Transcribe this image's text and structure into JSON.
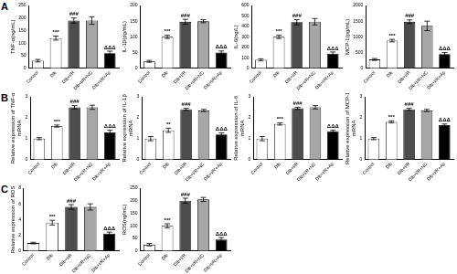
{
  "chart_data": [
    {
      "type": "bar",
      "panel": "A",
      "y_label": "TNF-α(ng/mL)",
      "categories": [
        "Control",
        "Dlb",
        "Dlb+I/R",
        "Dlb+I/R+NC",
        "Dlb+I/R+Ap"
      ],
      "values": [
        30,
        120,
        190,
        190,
        60
      ],
      "errors": [
        5,
        8,
        10,
        15,
        8
      ],
      "significance": [
        null,
        "***",
        "###",
        null,
        "ΔΔΔ"
      ],
      "colors": [
        "#ffffff",
        "#ffffff",
        "#4d4d4d",
        "#a6a6a6",
        "#000000"
      ],
      "ylim": [
        0,
        250
      ],
      "yticks": [
        0,
        50,
        100,
        150,
        200,
        250
      ],
      "grid": false
    },
    {
      "type": "bar",
      "panel": "A",
      "y_label": "IL-1β(pg/mL)",
      "categories": [
        "Control",
        "Dlb",
        "Dlb+I/R",
        "Dlb+I/R+NC",
        "Dlb+I/R+Ap"
      ],
      "values": [
        22,
        100,
        148,
        150,
        50
      ],
      "errors": [
        3,
        5,
        8,
        5,
        5
      ],
      "significance": [
        null,
        "***",
        "###",
        null,
        "ΔΔΔ"
      ],
      "colors": [
        "#ffffff",
        "#ffffff",
        "#4d4d4d",
        "#a6a6a6",
        "#000000"
      ],
      "ylim": [
        0,
        200
      ],
      "yticks": [
        0,
        50,
        100,
        150,
        200
      ],
      "grid": false
    },
    {
      "type": "bar",
      "panel": "A",
      "y_label": "IL-6(ng/L)",
      "categories": [
        "Control",
        "Dlb",
        "Dlb+I/R",
        "Dlb+I/R+NC",
        "Dlb+I/R+Ap"
      ],
      "values": [
        80,
        300,
        440,
        445,
        140
      ],
      "errors": [
        10,
        15,
        25,
        30,
        15
      ],
      "significance": [
        null,
        "***",
        "###",
        null,
        "ΔΔΔ"
      ],
      "colors": [
        "#ffffff",
        "#ffffff",
        "#4d4d4d",
        "#a6a6a6",
        "#000000"
      ],
      "ylim": [
        0,
        600
      ],
      "yticks": [
        0,
        100,
        200,
        300,
        400,
        500,
        600
      ],
      "grid": false
    },
    {
      "type": "bar",
      "panel": "A",
      "y_label": "MCP-1(pg/mL)",
      "categories": [
        "Control",
        "Dlb",
        "Dlb+I/R",
        "Dlb+I/R+NC",
        "Dlb+I/R+Ap"
      ],
      "values": [
        280,
        880,
        1480,
        1350,
        450
      ],
      "errors": [
        30,
        40,
        60,
        150,
        50
      ],
      "significance": [
        null,
        "***",
        "###",
        null,
        "ΔΔΔ"
      ],
      "colors": [
        "#ffffff",
        "#ffffff",
        "#4d4d4d",
        "#a6a6a6",
        "#000000"
      ],
      "ylim": [
        0,
        2000
      ],
      "yticks": [
        0,
        500,
        1000,
        1500,
        2000
      ],
      "grid": false
    },
    {
      "type": "bar",
      "panel": "B",
      "y_label": "Relative expression of TNF-α mRNA",
      "categories": [
        "Control",
        "Dlb",
        "Dlb+I/R",
        "Dlb+I/R+NC",
        "Dlb+I/R+Ap"
      ],
      "values": [
        1.0,
        1.6,
        2.5,
        2.5,
        1.3
      ],
      "errors": [
        0.05,
        0.05,
        0.08,
        0.1,
        0.1
      ],
      "significance": [
        null,
        "***",
        "###",
        null,
        "ΔΔΔ"
      ],
      "colors": [
        "#ffffff",
        "#ffffff",
        "#4d4d4d",
        "#a6a6a6",
        "#000000"
      ],
      "ylim": [
        0,
        3
      ],
      "yticks": [
        0,
        1,
        2,
        3
      ],
      "grid": false
    },
    {
      "type": "bar",
      "panel": "B",
      "y_label": "Relative expression of IL-1β mRNA",
      "categories": [
        "Control",
        "Dlb",
        "Dlb+I/R",
        "Dlb+I/R+NC",
        "Dlb+I/R+Ap"
      ],
      "values": [
        1.0,
        1.4,
        2.4,
        2.35,
        1.2
      ],
      "errors": [
        0.1,
        0.1,
        0.05,
        0.05,
        0.08
      ],
      "significance": [
        null,
        "**",
        "###",
        null,
        "ΔΔΔ"
      ],
      "colors": [
        "#ffffff",
        "#ffffff",
        "#4d4d4d",
        "#a6a6a6",
        "#000000"
      ],
      "ylim": [
        0,
        3
      ],
      "yticks": [
        0,
        1,
        2,
        3
      ],
      "grid": false
    },
    {
      "type": "bar",
      "panel": "B",
      "y_label": "Relative expression of IL-6 mRNA",
      "categories": [
        "Control",
        "Dlb",
        "Dlb+I/R",
        "Dlb+I/R+NC",
        "Dlb+I/R+Ap"
      ],
      "values": [
        1.0,
        1.7,
        2.45,
        2.5,
        1.35
      ],
      "errors": [
        0.1,
        0.05,
        0.05,
        0.08,
        0.05
      ],
      "significance": [
        null,
        "***",
        "###",
        null,
        "ΔΔΔ"
      ],
      "colors": [
        "#ffffff",
        "#ffffff",
        "#4d4d4d",
        "#a6a6a6",
        "#000000"
      ],
      "ylim": [
        0,
        3
      ],
      "yticks": [
        0,
        1,
        2,
        3
      ],
      "grid": false
    },
    {
      "type": "bar",
      "panel": "B",
      "y_label": "Relative expression of MCP-1 mRNA",
      "categories": [
        "Control",
        "Dlb",
        "Dlb+I/R",
        "Dlb+I/R+NC",
        "Dlb+I/R+Ap"
      ],
      "values": [
        1.0,
        1.8,
        2.4,
        2.35,
        1.65
      ],
      "errors": [
        0.05,
        0.05,
        0.05,
        0.05,
        0.05
      ],
      "significance": [
        null,
        "***",
        "###",
        null,
        "ΔΔΔ"
      ],
      "colors": [
        "#ffffff",
        "#ffffff",
        "#4d4d4d",
        "#a6a6a6",
        "#000000"
      ],
      "ylim": [
        0,
        3
      ],
      "yticks": [
        0,
        1,
        2,
        3
      ],
      "grid": false
    },
    {
      "type": "bar",
      "panel": "C",
      "y_label": "Relative expression of ROS",
      "categories": [
        "Control",
        "Dlb",
        "Dlb+I/R",
        "Dlb+I/R+NC",
        "Dlb+I/R+Ap"
      ],
      "values": [
        1.0,
        3.6,
        5.6,
        5.6,
        2.2
      ],
      "errors": [
        0.1,
        0.3,
        0.3,
        0.4,
        0.2
      ],
      "significance": [
        null,
        "***",
        "###",
        null,
        "ΔΔΔ"
      ],
      "colors": [
        "#ffffff",
        "#ffffff",
        "#4d4d4d",
        "#a6a6a6",
        "#000000"
      ],
      "ylim": [
        0,
        8
      ],
      "yticks": [
        0,
        2,
        4,
        6,
        8
      ],
      "grid": false
    },
    {
      "type": "bar",
      "panel": "C",
      "y_label": "ROS(ng/mL)",
      "categories": [
        "Control",
        "Dlb",
        "Dlb+I/R",
        "Dlb+I/R+NC",
        "Dlb+I/R+Ap"
      ],
      "values": [
        25,
        100,
        200,
        205,
        45
      ],
      "errors": [
        5,
        8,
        10,
        8,
        8
      ],
      "significance": [
        null,
        "***",
        "###",
        null,
        "ΔΔΔ"
      ],
      "colors": [
        "#ffffff",
        "#ffffff",
        "#4d4d4d",
        "#a6a6a6",
        "#000000"
      ],
      "ylim": [
        0,
        250
      ],
      "yticks": [
        0,
        50,
        100,
        150,
        200,
        250
      ],
      "grid": false
    }
  ]
}
